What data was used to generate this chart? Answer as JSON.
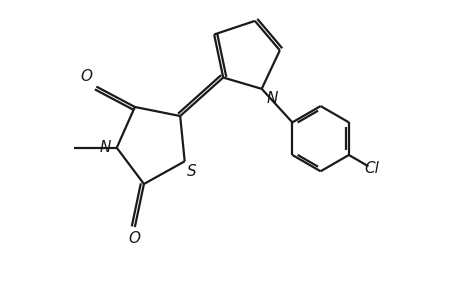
{
  "bg_color": "#ffffff",
  "line_color": "#1a1a1a",
  "line_width": 1.6,
  "figsize": [
    4.6,
    3.0
  ],
  "dpi": 100,
  "xlim": [
    0,
    10
  ],
  "ylim": [
    0,
    6.5
  ]
}
